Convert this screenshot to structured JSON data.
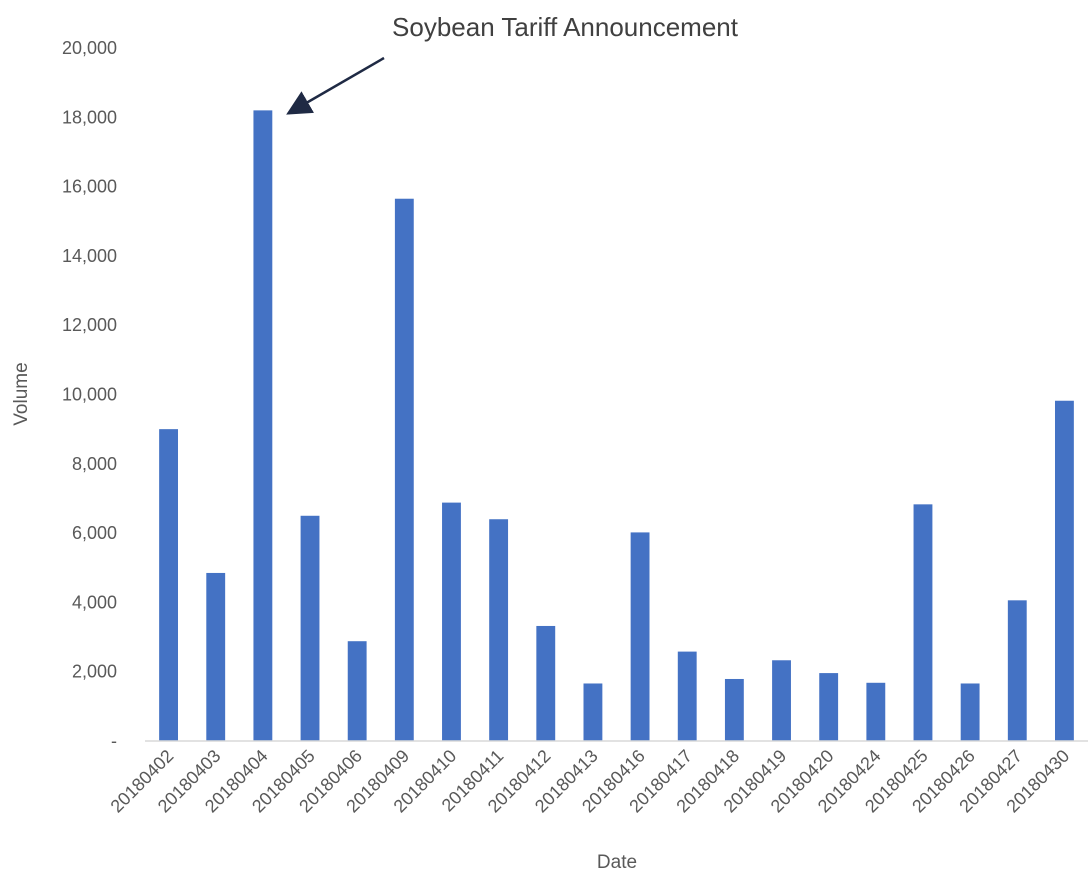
{
  "chart_data": {
    "type": "bar",
    "title": "",
    "xlabel": "Date",
    "ylabel": "Volume",
    "ylim": [
      0,
      20000
    ],
    "yticks": [
      0,
      2000,
      4000,
      6000,
      8000,
      10000,
      12000,
      14000,
      16000,
      18000,
      20000
    ],
    "ytick_labels": [
      "-",
      "2,000",
      "4,000",
      "6,000",
      "8,000",
      "10,000",
      "12,000",
      "14,000",
      "16,000",
      "18,000",
      "20,000"
    ],
    "categories": [
      "20180402",
      "20180403",
      "20180404",
      "20180405",
      "20180406",
      "20180409",
      "20180410",
      "20180411",
      "20180412",
      "20180413",
      "20180416",
      "20180417",
      "20180418",
      "20180419",
      "20180420",
      "20180424",
      "20180425",
      "20180426",
      "20180427",
      "20180430"
    ],
    "values": [
      9000,
      4850,
      18200,
      6500,
      2880,
      15650,
      6880,
      6400,
      3320,
      1660,
      6020,
      2580,
      1790,
      2330,
      1960,
      1680,
      6830,
      1660,
      4060,
      9820
    ],
    "bar_color": "#4472C4",
    "grid": false,
    "legend": "none",
    "annotation": {
      "text": "Soybean Tariff Announcement",
      "target_category": "20180404",
      "arrow_color": "#1F2A44"
    }
  }
}
